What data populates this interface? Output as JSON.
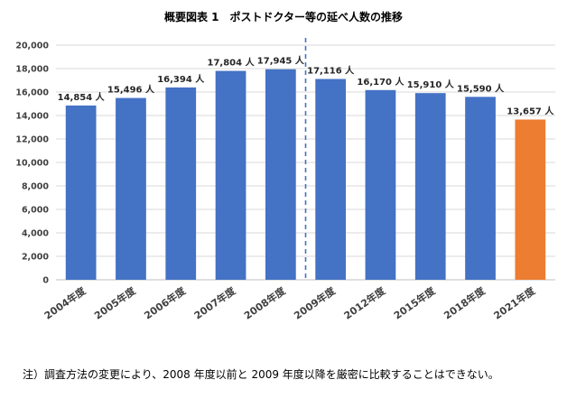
{
  "chart_data": {
    "type": "bar",
    "title": "概要図表 1　ポストドクター等の延べ人数の推移",
    "categories": [
      "2004年度",
      "2005年度",
      "2006年度",
      "2007年度",
      "2008年度",
      "2009年度",
      "2012年度",
      "2015年度",
      "2018年度",
      "2021年度"
    ],
    "values": [
      14854,
      15496,
      16394,
      17804,
      17945,
      17116,
      16170,
      15910,
      15590,
      13657
    ],
    "data_labels": [
      "14,854 人",
      "15,496 人",
      "16,394 人",
      "17,804 人",
      "17,945 人",
      "17,116 人",
      "16,170 人",
      "15,910 人",
      "15,590 人",
      "13,657 人"
    ],
    "bar_colors": [
      "#4472C4",
      "#4472C4",
      "#4472C4",
      "#4472C4",
      "#4472C4",
      "#4472C4",
      "#4472C4",
      "#4472C4",
      "#4472C4",
      "#ED7D31"
    ],
    "ylim": [
      0,
      20000
    ],
    "yticks": [
      0,
      2000,
      4000,
      6000,
      8000,
      10000,
      12000,
      14000,
      16000,
      18000,
      20000
    ],
    "ytick_labels": [
      "0",
      "2,000",
      "4,000",
      "6,000",
      "8,000",
      "10,000",
      "12,000",
      "14,000",
      "16,000",
      "18,000",
      "20,000"
    ],
    "grid": true,
    "divider_after_category": "2008年度",
    "divider_color": "#4472C4",
    "grid_color": "#D9D9D9",
    "axis_color": "#BFBFBF"
  },
  "footnote": "注）調査方法の変更により、2008 年度以前と 2009 年度以降を厳密に比較することはできない。"
}
